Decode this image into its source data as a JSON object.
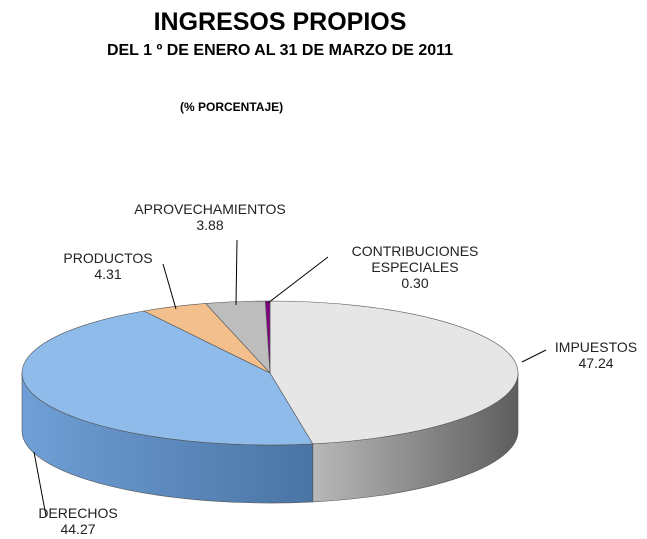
{
  "chart_data": {
    "type": "pie3d",
    "title": "INGRESOS PROPIOS",
    "subtitle": "DEL 1 º DE ENERO AL 31 DE MARZO DE 2011",
    "unit_label": "(% PORCENTAJE)",
    "categories": [
      "IMPUESTOS",
      "DERECHOS",
      "PRODUCTOS",
      "APROVECHAMIENTOS",
      "CONTRIBUCIONES ESPECIALES"
    ],
    "values": [
      47.24,
      44.27,
      4.31,
      3.88,
      0.3
    ],
    "value_labels": [
      "47.24",
      "44.27",
      "4.31",
      "3.88",
      "0.30"
    ],
    "colors": [
      "#e6e6e6",
      "#8ebbea",
      "#f3bf8c",
      "#bdbdbd",
      "#800080"
    ]
  }
}
